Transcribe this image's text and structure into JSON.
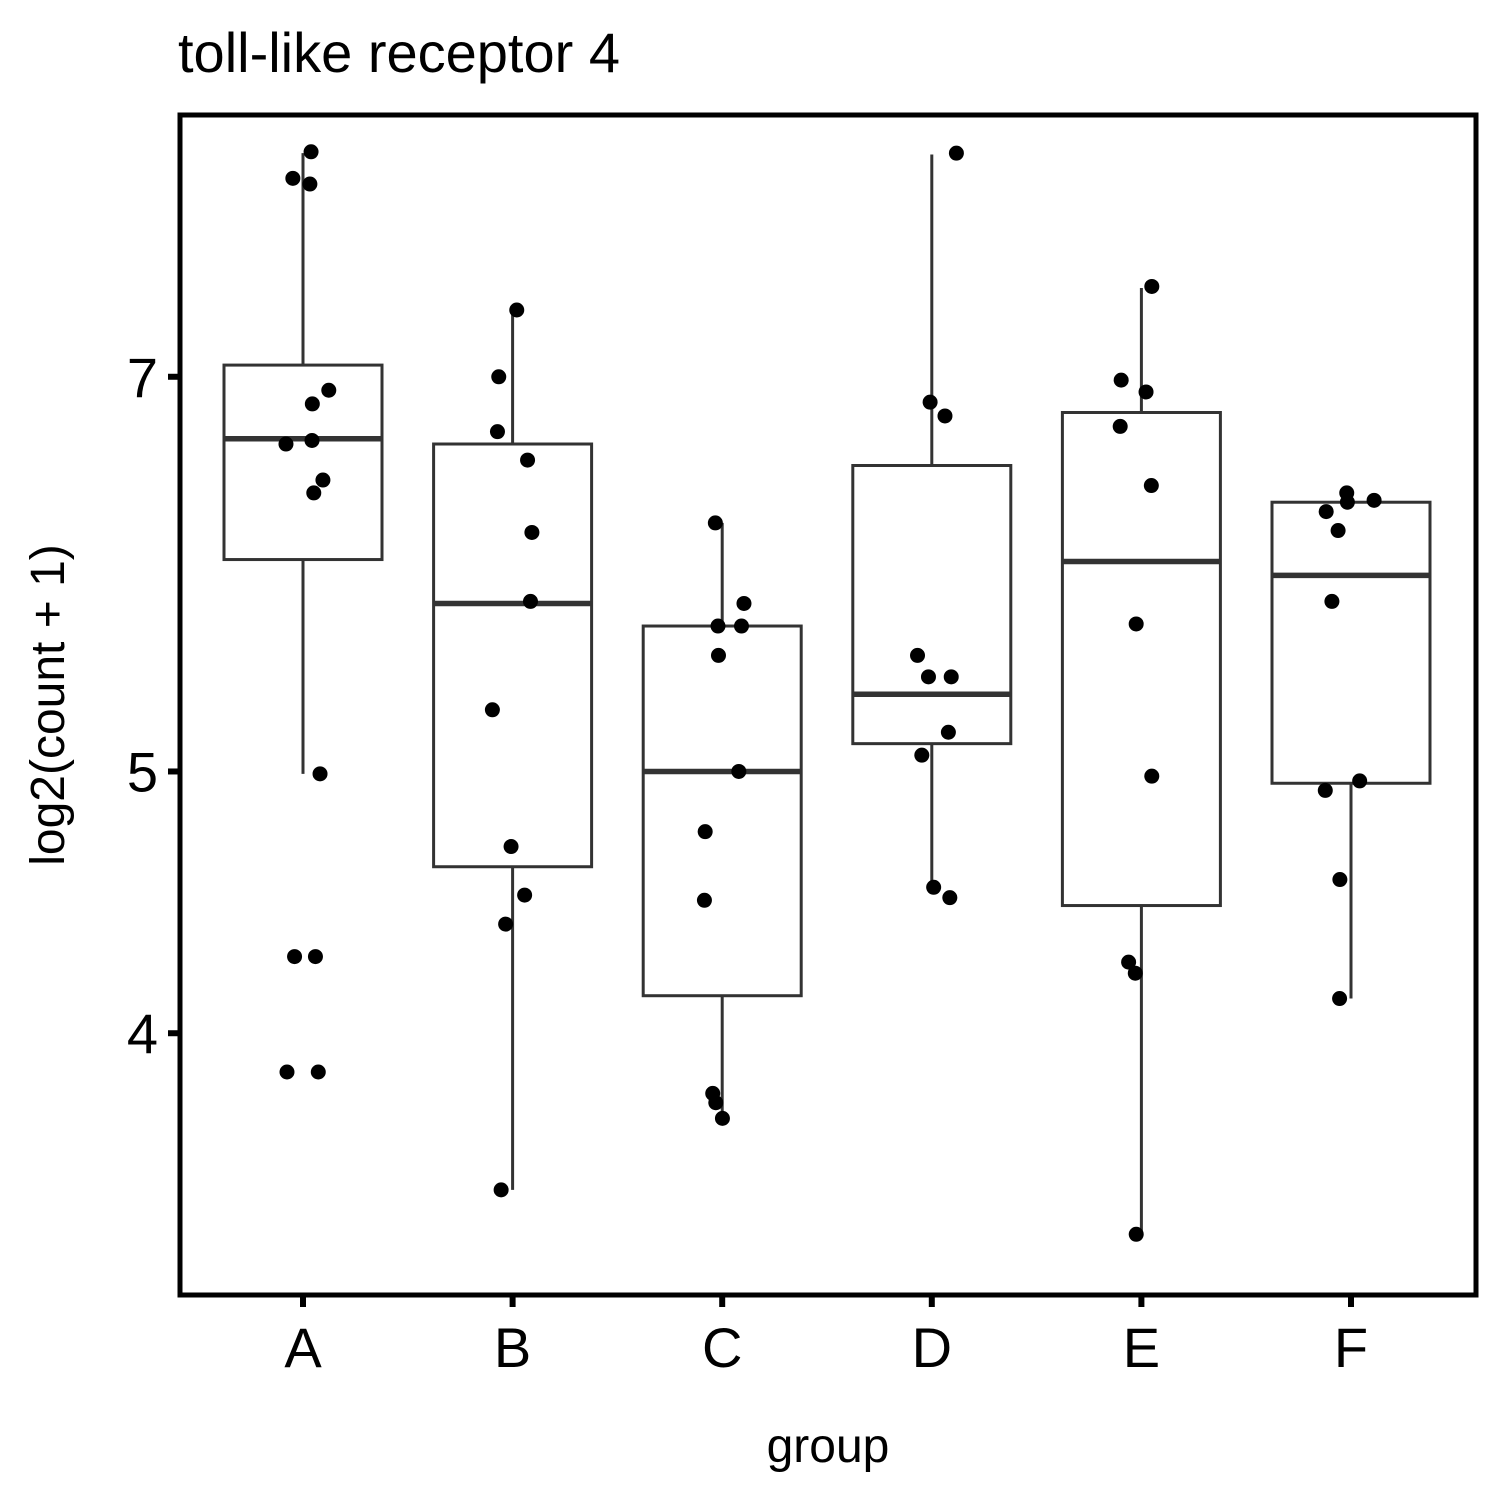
{
  "chart_data": {
    "type": "box",
    "title": "toll-like receptor 4",
    "xlabel": "group",
    "ylabel": "log2(count + 1)",
    "y_scale": "log2",
    "ylim": [
      3.2,
      8.75
    ],
    "y_ticks": [
      4,
      5,
      7
    ],
    "grid": false,
    "legend": "none",
    "colors": {
      "box_stroke": "#333333",
      "point": "#000000",
      "axis": "#000000"
    },
    "categories": [
      "A",
      "B",
      "C",
      "D",
      "E",
      "F"
    ],
    "groups": [
      {
        "name": "A",
        "box": {
          "lower_whisker": 4.99,
          "q1": 5.99,
          "median": 6.64,
          "q3": 7.07,
          "upper_whisker": 8.47
        },
        "points": [
          8.48,
          8.29,
          8.25,
          6.92,
          6.84,
          6.63,
          6.61,
          6.41,
          6.34,
          4.99,
          4.27,
          4.27,
          3.87,
          3.87
        ]
      },
      {
        "name": "B",
        "box": {
          "lower_whisker": 3.5,
          "q1": 4.61,
          "median": 5.77,
          "q3": 6.61,
          "upper_whisker": 7.41
        },
        "points": [
          7.41,
          7.0,
          6.68,
          6.52,
          6.13,
          5.78,
          5.27,
          4.69,
          4.5,
          4.39,
          3.5
        ]
      },
      {
        "name": "C",
        "box": {
          "lower_whisker": 3.72,
          "q1": 4.13,
          "median": 5.0,
          "q3": 5.66,
          "upper_whisker": 6.18
        },
        "points": [
          6.18,
          5.77,
          5.66,
          5.66,
          5.52,
          5.0,
          4.75,
          4.48,
          3.8,
          3.77,
          3.72
        ]
      },
      {
        "name": "D",
        "box": {
          "lower_whisker": 4.52,
          "q1": 5.12,
          "median": 5.34,
          "q3": 6.49,
          "upper_whisker": 8.46
        },
        "points": [
          8.47,
          6.85,
          6.77,
          5.52,
          5.42,
          5.42,
          5.17,
          5.07,
          4.53,
          4.49
        ]
      },
      {
        "name": "E",
        "box": {
          "lower_whisker": 3.37,
          "q1": 4.46,
          "median": 5.98,
          "q3": 6.79,
          "upper_whisker": 7.55
        },
        "points": [
          7.56,
          6.98,
          6.91,
          6.71,
          6.38,
          5.67,
          4.98,
          4.25,
          4.21,
          3.37
        ]
      },
      {
        "name": "F",
        "box": {
          "lower_whisker": 4.12,
          "q1": 4.95,
          "median": 5.91,
          "q3": 6.29,
          "upper_whisker": 6.34
        },
        "points": [
          6.34,
          6.3,
          6.29,
          6.24,
          6.14,
          5.78,
          4.96,
          4.92,
          4.56,
          4.12
        ]
      }
    ]
  }
}
